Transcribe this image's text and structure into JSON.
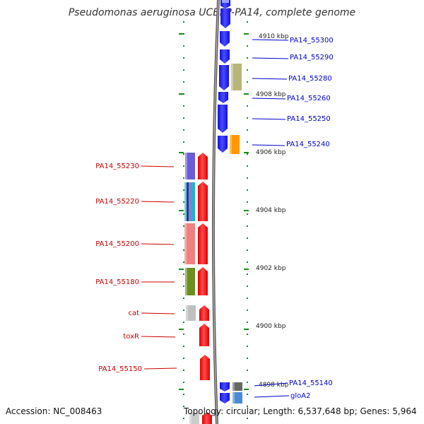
{
  "title": "Pseudomonas aeruginosa UCBPP-PA14, complete genome",
  "accession": "Accession: NC_008463",
  "topology": "Topology: circular; Length: 6,537,648 bp; Genes: 5,964",
  "colors": {
    "forward_arrow": "#1a1aff",
    "reverse_arrow": "#ff1a1a",
    "forward_label": "#0000cc",
    "reverse_label": "#cc0000",
    "backbone": "#808080",
    "ticks": "#1b8a1b"
  },
  "kbp_marks": [
    {
      "label": "4910 kbp"
    },
    {
      "label": "4908 kbp"
    },
    {
      "label": "4906 kbp"
    },
    {
      "label": "4904 kbp"
    },
    {
      "label": "4902 kbp"
    },
    {
      "label": "4900 kbp"
    },
    {
      "label": "4898 kbp"
    }
  ],
  "forward_genes": [
    {
      "label": "PA14_55300"
    },
    {
      "label": "PA14_55290"
    },
    {
      "label": "PA14_55280",
      "domain_color": "#b8b57a"
    },
    {
      "label": "PA14_55260"
    },
    {
      "label": "PA14_55250"
    },
    {
      "label": "PA14_55240",
      "domain_color": "#ff9900"
    },
    {
      "label": "PA14_55140",
      "domain_color": "#666666"
    },
    {
      "label": "gloA2",
      "domain_color": "#4a8ad4"
    }
  ],
  "reverse_genes": [
    {
      "label": "PA14_55230",
      "domain_color": "#6b5bd6"
    },
    {
      "label": "PA14_55220",
      "domain_color": "#22b2cc"
    },
    {
      "label": "PA14_55200",
      "domain_color": "#f08080"
    },
    {
      "label": "PA14_55180",
      "domain_color": "#6b8e23"
    },
    {
      "label": "cat",
      "domain_color": "#c0c0c0"
    },
    {
      "label": "toxR"
    },
    {
      "label": "PA14_55150"
    }
  ]
}
